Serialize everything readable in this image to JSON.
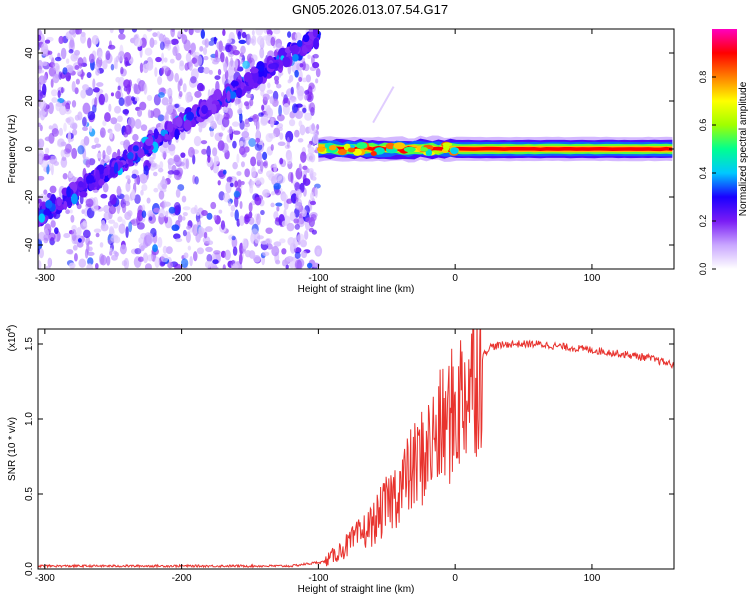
{
  "title": "GN05.2026.013.07.54.G17",
  "colors": {
    "frame": "#000000",
    "snr_line": "#e8332e",
    "track_purple": "#7a2cf0",
    "noise_light": "#cbb6f5"
  },
  "chart_data": [
    {
      "type": "heatmap",
      "title": "GN05.2026.013.07.54.G17",
      "xlabel": "Height of straight line (km)",
      "ylabel": "Frequency (Hz)",
      "xlim": [
        -305,
        160
      ],
      "ylim": [
        -50,
        50
      ],
      "x_ticks": [
        -300,
        -200,
        -100,
        0,
        100
      ],
      "y_ticks": [
        -40,
        -20,
        0,
        20,
        40
      ],
      "colorbar": {
        "label": "Normalized spectral amplitude",
        "ticks": [
          0.0,
          0.2,
          0.4,
          0.6,
          0.8
        ],
        "range": [
          0,
          1
        ],
        "colormap": [
          "#ffffff",
          "#c9a6ff",
          "#7a1cf5",
          "#1a00ff",
          "#00c8ff",
          "#00ff90",
          "#a0ff00",
          "#ffff00",
          "#ff8000",
          "#ff0000",
          "#ff00c0"
        ]
      },
      "features": [
        {
          "name": "sloped_track",
          "x": [
            -305,
            -100
          ],
          "y": [
            -28,
            47
          ],
          "amplitude": 0.25
        },
        {
          "name": "flat_track",
          "x": [
            -100,
            160
          ],
          "y": [
            0,
            0
          ],
          "amplitude": 0.9
        }
      ],
      "grid": false
    },
    {
      "type": "line",
      "xlabel": "Height of straight line (km)",
      "ylabel": "SNR (10 * v/v)",
      "y_multiplier": "(x10",
      "y_multiplier_exp": "4",
      "xlim": [
        -305,
        160
      ],
      "ylim": [
        0,
        1.6
      ],
      "x_ticks": [
        -300,
        -200,
        -100,
        0,
        100
      ],
      "y_ticks": [
        0.0,
        0.5,
        1.0,
        1.5
      ],
      "series": [
        {
          "x": [
            -305,
            -200,
            -120,
            -95,
            -80,
            -60,
            -40,
            -20,
            0,
            15,
            25,
            40,
            60,
            100,
            140,
            160
          ],
          "values": [
            0.02,
            0.02,
            0.02,
            0.05,
            0.15,
            0.3,
            0.55,
            0.8,
            1.05,
            1.35,
            1.48,
            1.5,
            1.5,
            1.46,
            1.41,
            1.36
          ]
        }
      ],
      "grid": false
    }
  ]
}
